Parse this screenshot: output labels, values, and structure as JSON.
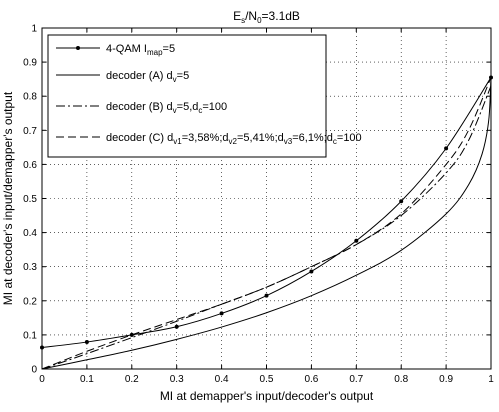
{
  "chart_data": {
    "type": "line",
    "title": {
      "base": "E",
      "sub1": "s",
      "mid": "/N",
      "sub2": "0",
      "tail": "=3.1dB"
    },
    "xlabel": "MI at demapper's input/decoder's output",
    "ylabel": "MI at decoder's input/demapper's output",
    "xlim": [
      0,
      1
    ],
    "ylim": [
      0,
      1
    ],
    "xticks": [
      0,
      0.1,
      0.2,
      0.3,
      0.4,
      0.5,
      0.6,
      0.7,
      0.8,
      0.9,
      1
    ],
    "yticks": [
      0,
      0.1,
      0.2,
      0.3,
      0.4,
      0.5,
      0.6,
      0.7,
      0.8,
      0.9,
      1
    ],
    "grid": true,
    "legend_position": "top-left",
    "legend": [
      {
        "parts": [
          {
            "t": "4-QAM I"
          },
          {
            "t": "map",
            "sub": true
          },
          {
            "t": "=5"
          }
        ]
      },
      {
        "parts": [
          {
            "t": "decoder (A) d"
          },
          {
            "t": "v",
            "sub": true
          },
          {
            "t": "=5"
          }
        ]
      },
      {
        "parts": [
          {
            "t": "decoder (B) d"
          },
          {
            "t": "v",
            "sub": true
          },
          {
            "t": "=5,d"
          },
          {
            "t": "c",
            "sub": true
          },
          {
            "t": "=100"
          }
        ]
      },
      {
        "parts": [
          {
            "t": "decoder (C) d"
          },
          {
            "t": "v1",
            "sub": true
          },
          {
            "t": "=3,58%;d"
          },
          {
            "t": "v2",
            "sub": true
          },
          {
            "t": "=5,41%;d"
          },
          {
            "t": "v3",
            "sub": true
          },
          {
            "t": "=6,1%;d"
          },
          {
            "t": "c",
            "sub": true
          },
          {
            "t": "=100"
          }
        ]
      }
    ],
    "series": [
      {
        "style": "solid-marker",
        "x": [
          0,
          0.1,
          0.2,
          0.3,
          0.4,
          0.5,
          0.6,
          0.7,
          0.8,
          0.9,
          1
        ],
        "y": [
          0.063,
          0.079,
          0.1,
          0.124,
          0.163,
          0.215,
          0.286,
          0.376,
          0.492,
          0.647,
          0.855
        ]
      },
      {
        "style": "solid",
        "x": [
          0,
          0.1,
          0.2,
          0.3,
          0.4,
          0.5,
          0.6,
          0.7,
          0.8,
          0.9,
          0.95,
          0.98,
          0.995,
          1
        ],
        "y": [
          0.0,
          0.027,
          0.055,
          0.087,
          0.123,
          0.165,
          0.215,
          0.275,
          0.348,
          0.455,
          0.54,
          0.63,
          0.73,
          0.86
        ]
      },
      {
        "style": "dash-dot",
        "x": [
          0,
          0.05,
          0.1,
          0.2,
          0.3,
          0.4,
          0.5,
          0.6,
          0.7,
          0.8,
          0.9,
          0.95,
          1
        ],
        "y": [
          0.0,
          0.022,
          0.045,
          0.092,
          0.14,
          0.19,
          0.24,
          0.3,
          0.365,
          0.45,
          0.575,
          0.67,
          0.83
        ]
      },
      {
        "style": "dashed",
        "x": [
          0,
          0.05,
          0.1,
          0.2,
          0.3,
          0.4,
          0.5,
          0.6,
          0.7,
          0.8,
          0.9,
          0.95,
          1
        ],
        "y": [
          0.0,
          0.026,
          0.052,
          0.1,
          0.145,
          0.19,
          0.24,
          0.3,
          0.365,
          0.455,
          0.6,
          0.7,
          0.855
        ]
      }
    ]
  }
}
